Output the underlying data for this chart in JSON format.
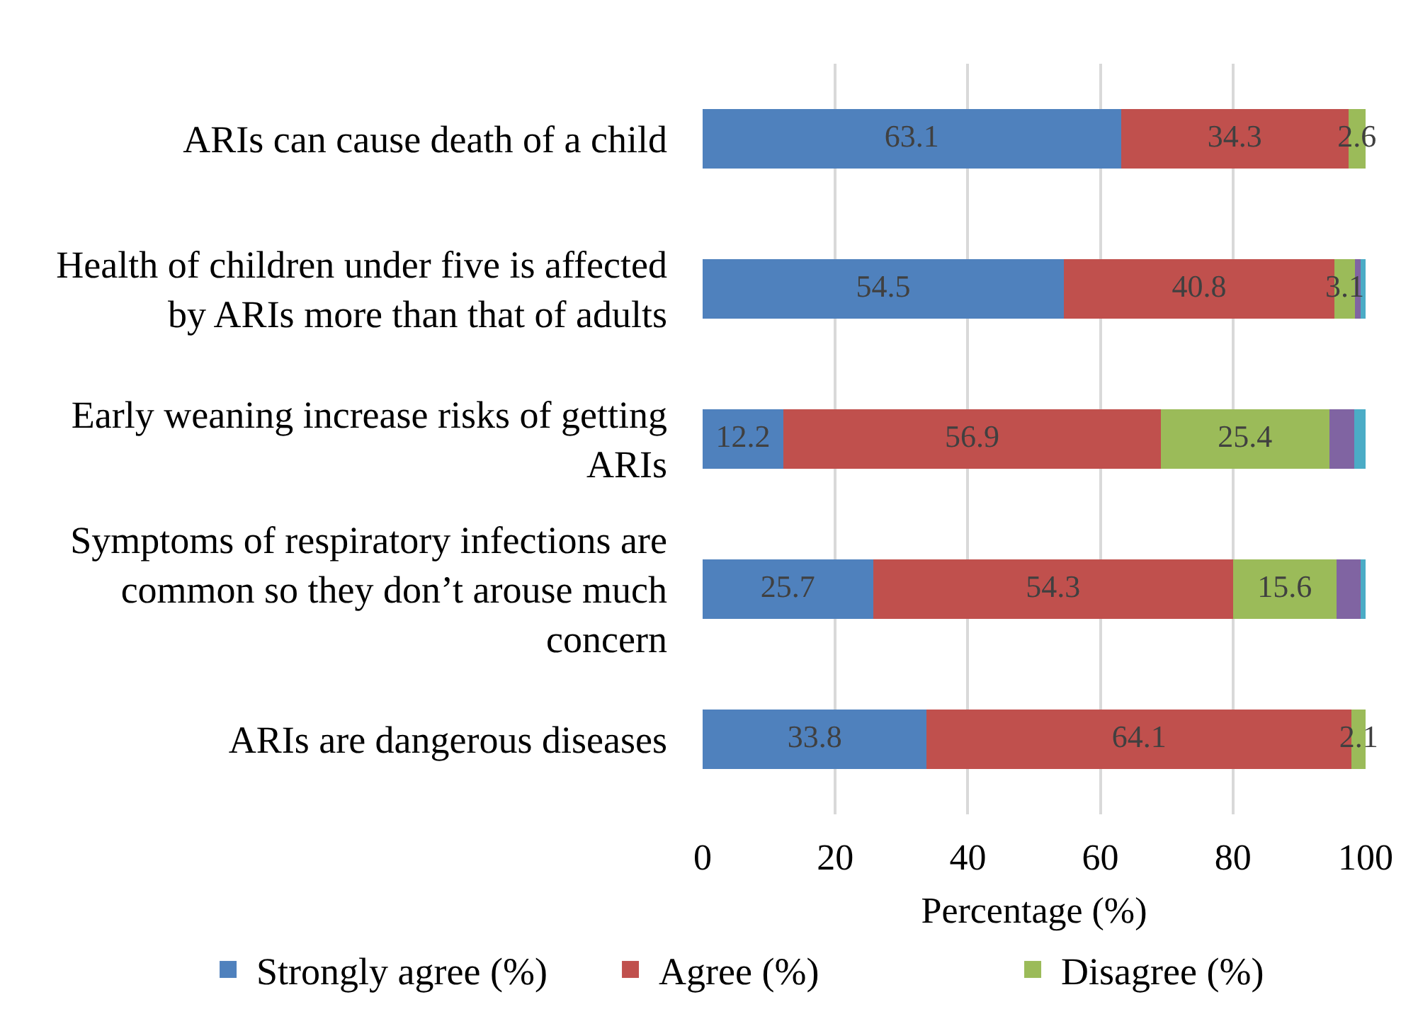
{
  "chart_data": {
    "type": "bar",
    "orientation": "horizontal",
    "stacked": true,
    "categories": [
      "ARIs can cause death of a child",
      "Health of children under five is affected\nby ARIs more than that of adults",
      "Early weaning increase risks of getting\nARIs",
      "Symptoms of respiratory infections are\ncommon so they don’t arouse much\nconcern",
      "ARIs are dangerous diseases"
    ],
    "series": [
      {
        "name": "Strongly agree (%)",
        "color": "#4f81bd",
        "values": [
          63.1,
          54.5,
          12.2,
          25.7,
          33.8
        ],
        "value_labels": [
          "63.1",
          "54.5",
          "12.2",
          "25.7",
          "33.8"
        ]
      },
      {
        "name": "Agree (%)",
        "color": "#c0504d",
        "values": [
          34.3,
          40.8,
          56.9,
          54.3,
          64.1
        ],
        "value_labels": [
          "34.3",
          "40.8",
          "56.9",
          "54.3",
          "64.1"
        ]
      },
      {
        "name": "Disagree (%)",
        "color": "#9bbb59",
        "values": [
          2.6,
          3.1,
          25.4,
          15.6,
          2.1
        ],
        "value_labels": [
          "2.6",
          "3.1",
          "25.4",
          "15.6",
          "2.1"
        ]
      },
      {
        "color": "#8064a2",
        "values": [
          null,
          0.8,
          3.8,
          3.7,
          null
        ]
      },
      {
        "color": "#4bacc6",
        "values": [
          null,
          0.8,
          1.7,
          0.7,
          null
        ]
      }
    ],
    "xlabel": "Percentage (%)",
    "xlim": [
      0,
      100
    ],
    "xticks": [
      0,
      20,
      40,
      60,
      80,
      100
    ],
    "grid": "x",
    "legend": "bottom"
  }
}
